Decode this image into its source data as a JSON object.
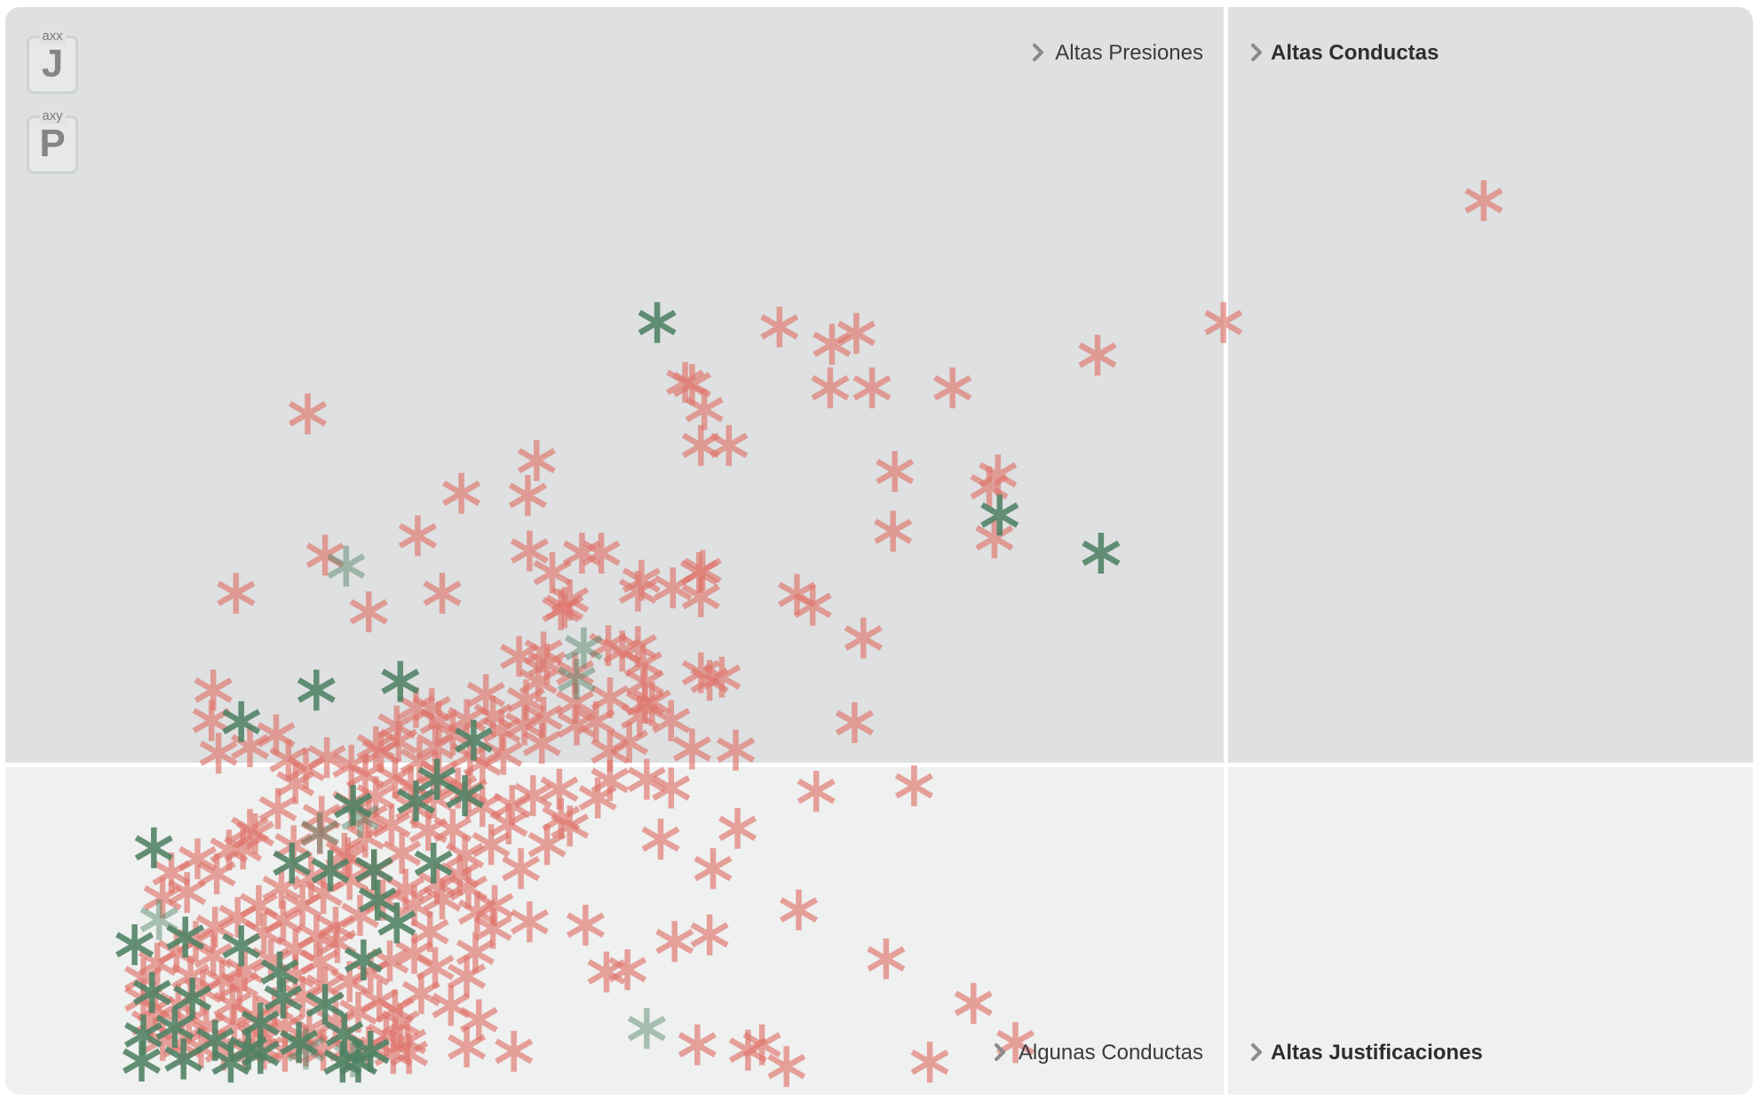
{
  "quadrants": {
    "top_left": "Altas Presiones",
    "top_right": "Altas Conductas",
    "bottom_left": "Algunas Conductas",
    "bottom_right": "Altas Justificaciones"
  },
  "axis_buttons": [
    {
      "small": "axx",
      "big": "J"
    },
    {
      "small": "axy",
      "big": "P"
    }
  ],
  "colors": {
    "red": "#e0766d",
    "green": "#4f8264",
    "top_bg": "#dee0e1",
    "bottom_bg": "#eff0f0",
    "divider": "#ffffff"
  },
  "chart_data": {
    "type": "scatter",
    "marker": "asterisk",
    "xlim": [
      0,
      100
    ],
    "ylim": [
      0,
      100
    ],
    "threshold_x": 68.9,
    "threshold_y": 30.9,
    "grid": false,
    "series": [
      {
        "color_key": "red",
        "points": [
          [
            84.6,
            82.2
          ],
          [
            69.7,
            71.0
          ],
          [
            62.5,
            68.0
          ],
          [
            48.7,
            70.0
          ],
          [
            44.3,
            70.6
          ],
          [
            47.3,
            69.0
          ],
          [
            39.3,
            65.3
          ],
          [
            47.2,
            65.0
          ],
          [
            49.6,
            65.0
          ],
          [
            54.2,
            65.0
          ],
          [
            38.9,
            65.5
          ],
          [
            40.0,
            63.0
          ],
          [
            17.3,
            62.6
          ],
          [
            39.8,
            59.7
          ],
          [
            41.4,
            59.7
          ],
          [
            50.9,
            57.3
          ],
          [
            56.8,
            57.0
          ],
          [
            50.8,
            51.8
          ],
          [
            56.3,
            55.9
          ],
          [
            56.6,
            51.2
          ],
          [
            30.4,
            58.3
          ],
          [
            29.9,
            55.1
          ],
          [
            26.1,
            55.3
          ],
          [
            23.6,
            51.4
          ],
          [
            18.3,
            49.6
          ],
          [
            13.2,
            46.1
          ],
          [
            20.8,
            44.4
          ],
          [
            25.0,
            46.1
          ],
          [
            33.0,
            49.8
          ],
          [
            30.0,
            50.0
          ],
          [
            39.7,
            48.0
          ],
          [
            36.4,
            47.3
          ],
          [
            39.9,
            48.2
          ],
          [
            36.2,
            46.3
          ],
          [
            38.2,
            46.6
          ],
          [
            39.8,
            45.8
          ],
          [
            31.3,
            48.0
          ],
          [
            32.3,
            45.5
          ],
          [
            34.1,
            49.8
          ],
          [
            31.8,
            44.6
          ],
          [
            32.0,
            44.8
          ],
          [
            45.3,
            46.0
          ],
          [
            46.2,
            45.0
          ],
          [
            49.1,
            42.0
          ],
          [
            34.5,
            41.3
          ],
          [
            35.3,
            40.8
          ],
          [
            36.2,
            41.2
          ],
          [
            36.5,
            39.6
          ],
          [
            31.0,
            39.6
          ],
          [
            30.8,
            40.7
          ],
          [
            29.4,
            40.3
          ],
          [
            30.5,
            38.0
          ],
          [
            36.6,
            36.0
          ],
          [
            36.6,
            37.9
          ],
          [
            39.8,
            38.8
          ],
          [
            41.0,
            38.4
          ],
          [
            40.3,
            38.1
          ],
          [
            36.3,
            34.8
          ],
          [
            37.0,
            36.1
          ],
          [
            33.8,
            34.3
          ],
          [
            32.7,
            34.0
          ],
          [
            34.6,
            31.6
          ],
          [
            30.7,
            32.3
          ],
          [
            29.7,
            34.0
          ],
          [
            27.9,
            34.8
          ],
          [
            29.8,
            36.3
          ],
          [
            24.4,
            35.5
          ],
          [
            24.8,
            34.3
          ],
          [
            21.5,
            31.5
          ],
          [
            22.5,
            32.5
          ],
          [
            11.9,
            37.2
          ],
          [
            11.8,
            34.4
          ],
          [
            12.2,
            31.4
          ],
          [
            14.0,
            32.0
          ],
          [
            15.5,
            33.1
          ],
          [
            16.2,
            30.8
          ],
          [
            17.2,
            30.0
          ],
          [
            18.4,
            31.0
          ],
          [
            19.8,
            30.3
          ],
          [
            20.6,
            29.4
          ],
          [
            21.2,
            32.0
          ],
          [
            22.4,
            33.9
          ],
          [
            23.5,
            35.6
          ],
          [
            24.6,
            32.0
          ],
          [
            25.6,
            33.1
          ],
          [
            26.6,
            31.2
          ],
          [
            27.3,
            30.5
          ],
          [
            28.4,
            33.5
          ],
          [
            27.5,
            36.8
          ],
          [
            26.4,
            34.5
          ],
          [
            23.7,
            30.7
          ],
          [
            22.3,
            29.1
          ],
          [
            21.2,
            27.4
          ],
          [
            19.8,
            26.8
          ],
          [
            18.1,
            25.6
          ],
          [
            16.6,
            28.6
          ],
          [
            15.6,
            26.3
          ],
          [
            14.0,
            24.4
          ],
          [
            12.8,
            22.5
          ],
          [
            11.0,
            21.7
          ],
          [
            9.5,
            20.4
          ],
          [
            9.0,
            18.1
          ],
          [
            10.4,
            18.6
          ],
          [
            12.1,
            20.3
          ],
          [
            13.6,
            22.6
          ],
          [
            14.3,
            24.0
          ],
          [
            16.5,
            22.9
          ],
          [
            18.0,
            24.0
          ],
          [
            19.6,
            21.8
          ],
          [
            20.6,
            23.7
          ],
          [
            22.1,
            24.8
          ],
          [
            23.4,
            26.4
          ],
          [
            24.5,
            27.3
          ],
          [
            25.9,
            28.2
          ],
          [
            26.5,
            27.9
          ],
          [
            27.3,
            26.5
          ],
          [
            24.2,
            24.3
          ],
          [
            22.7,
            22.2
          ],
          [
            21.1,
            20.6
          ],
          [
            19.7,
            19.8
          ],
          [
            18.2,
            18.5
          ],
          [
            17.0,
            17.4
          ],
          [
            15.8,
            19.0
          ],
          [
            14.5,
            17.4
          ],
          [
            13.3,
            16.3
          ],
          [
            12.0,
            15.4
          ],
          [
            10.9,
            14.1
          ],
          [
            9.8,
            13.1
          ],
          [
            8.7,
            12.1
          ],
          [
            7.9,
            10.7
          ],
          [
            7.9,
            8.8
          ],
          [
            8.3,
            6.6
          ],
          [
            9.0,
            5.0
          ],
          [
            10.1,
            4.6
          ],
          [
            11.2,
            4.3
          ],
          [
            12.5,
            4.1
          ],
          [
            13.7,
            4.1
          ],
          [
            14.8,
            4.2
          ],
          [
            16.0,
            4.0
          ],
          [
            17.2,
            4.5
          ],
          [
            18.2,
            4.1
          ],
          [
            19.6,
            4.2
          ],
          [
            20.8,
            4.4
          ],
          [
            22.2,
            3.8
          ],
          [
            23.1,
            3.8
          ],
          [
            8.6,
            7.9
          ],
          [
            9.9,
            8.3
          ],
          [
            11.3,
            9.6
          ],
          [
            12.4,
            10.5
          ],
          [
            13.7,
            11.4
          ],
          [
            15.2,
            12.4
          ],
          [
            16.6,
            13.4
          ],
          [
            17.8,
            14.6
          ],
          [
            18.9,
            15.4
          ],
          [
            20.3,
            16.5
          ],
          [
            21.6,
            17.9
          ],
          [
            22.9,
            18.9
          ],
          [
            23.4,
            17.4
          ],
          [
            24.7,
            19.4
          ],
          [
            26.0,
            20.2
          ],
          [
            26.3,
            22.0
          ],
          [
            27.8,
            23.0
          ],
          [
            25.6,
            24.4
          ],
          [
            29.0,
            26.6
          ],
          [
            30.2,
            27.5
          ],
          [
            31.7,
            28.1
          ],
          [
            27.0,
            16.8
          ],
          [
            24.3,
            15.0
          ],
          [
            23.4,
            13.0
          ],
          [
            22.0,
            12.3
          ],
          [
            20.9,
            11.2
          ],
          [
            19.7,
            10.4
          ],
          [
            18.3,
            9.9
          ],
          [
            17.0,
            9.0
          ],
          [
            15.4,
            8.0
          ],
          [
            14.3,
            7.2
          ],
          [
            13.1,
            6.5
          ],
          [
            11.5,
            6.3
          ],
          [
            10.5,
            6.8
          ],
          [
            21.4,
            8.6
          ],
          [
            20.2,
            7.6
          ],
          [
            18.9,
            6.7
          ],
          [
            17.4,
            6.0
          ],
          [
            16.0,
            6.3
          ],
          [
            14.6,
            5.6
          ],
          [
            13.4,
            10.1
          ],
          [
            14.8,
            14.9
          ],
          [
            15.9,
            16.0
          ],
          [
            17.5,
            20.0
          ],
          [
            19.4,
            22.2
          ],
          [
            20.8,
            25.5
          ],
          [
            23.2,
            28.4
          ],
          [
            24.8,
            29.6
          ],
          [
            28.8,
            24.9
          ],
          [
            31.8,
            25.4
          ],
          [
            33.9,
            27.3
          ],
          [
            34.6,
            28.9
          ],
          [
            32.3,
            24.7
          ],
          [
            31.0,
            23.0
          ],
          [
            26.5,
            19.0
          ],
          [
            25.0,
            18.0
          ],
          [
            27.9,
            15.3
          ],
          [
            26.9,
            13.1
          ],
          [
            26.4,
            10.9
          ],
          [
            24.6,
            11.7
          ],
          [
            23.8,
            9.3
          ],
          [
            22.6,
            6.6
          ],
          [
            21.8,
            5.4
          ],
          [
            19.0,
            14.0
          ],
          [
            18.0,
            12.2
          ],
          [
            16.6,
            11.0
          ],
          [
            11.9,
            12.8
          ],
          [
            10.6,
            10.9
          ],
          [
            13.0,
            8.3
          ],
          [
            29.5,
            20.8
          ],
          [
            28.0,
            17.4
          ],
          [
            30.0,
            15.9
          ],
          [
            27.1,
            6.9
          ],
          [
            25.5,
            8.2
          ],
          [
            22.3,
            7.8
          ],
          [
            23.0,
            4.9
          ],
          [
            26.4,
            4.4
          ],
          [
            29.1,
            4.0
          ],
          [
            34.4,
            11.3
          ],
          [
            37.5,
            23.5
          ],
          [
            41.9,
            24.5
          ],
          [
            40.5,
            20.8
          ],
          [
            45.4,
            17.0
          ],
          [
            40.3,
            14.7
          ],
          [
            38.3,
            14.1
          ],
          [
            33.2,
            15.6
          ],
          [
            35.6,
            11.5
          ],
          [
            39.6,
            4.6
          ],
          [
            42.5,
            4.1
          ],
          [
            43.3,
            4.6
          ],
          [
            44.7,
            2.6
          ],
          [
            52.9,
            3.0
          ],
          [
            57.8,
            4.8
          ],
          [
            50.4,
            12.5
          ],
          [
            55.4,
            8.4
          ],
          [
            52.0,
            28.4
          ],
          [
            48.6,
            34.2
          ],
          [
            41.8,
            31.7
          ],
          [
            46.4,
            27.9
          ],
          [
            39.3,
            31.8
          ],
          [
            38.1,
            28.2
          ],
          [
            36.7,
            29.0
          ],
          [
            35.7,
            32.4
          ],
          [
            34.6,
            36.5
          ],
          [
            32.6,
            36.0
          ],
          [
            32.6,
            38.8
          ],
          [
            30.8,
            34.7
          ],
          [
            28.5,
            31.3
          ],
          [
            38.1,
            34.4
          ]
        ]
      },
      {
        "color_key": "green",
        "points": [
          [
            22.6,
            38.0
          ],
          [
            37.3,
            71.0
          ],
          [
            56.9,
            53.3
          ],
          [
            62.7,
            49.8
          ],
          [
            13.5,
            34.3
          ],
          [
            17.8,
            37.2
          ],
          [
            24.7,
            29.0
          ],
          [
            26.8,
            32.6
          ],
          [
            23.5,
            27.0
          ],
          [
            8.5,
            22.7
          ],
          [
            10.3,
            14.5
          ],
          [
            16.4,
            21.3
          ],
          [
            18.6,
            20.6
          ],
          [
            21.3,
            17.9
          ],
          [
            7.4,
            13.8
          ],
          [
            8.4,
            9.4
          ],
          [
            9.7,
            6.2
          ],
          [
            12.0,
            5.0
          ],
          [
            14.6,
            3.8
          ],
          [
            16.8,
            4.8
          ],
          [
            19.4,
            5.6
          ],
          [
            7.9,
            5.5
          ],
          [
            10.7,
            8.9
          ],
          [
            13.5,
            13.7
          ],
          [
            15.7,
            11.3
          ],
          [
            20.5,
            12.4
          ],
          [
            22.4,
            15.8
          ],
          [
            18.3,
            8.3
          ],
          [
            14.6,
            6.6
          ],
          [
            7.8,
            3.1
          ],
          [
            10.2,
            3.3
          ],
          [
            12.9,
            3.0
          ],
          [
            19.9,
            26.6
          ],
          [
            21.1,
            20.7
          ],
          [
            24.5,
            21.3
          ],
          [
            13.9,
            4.2
          ],
          [
            26.3,
            27.5
          ],
          [
            19.3,
            3.0
          ],
          [
            15.9,
            8.9
          ],
          [
            20.9,
            4.0
          ],
          [
            20.2,
            3.0
          ]
        ]
      },
      {
        "color_key": "green",
        "opacity": "faded",
        "points": [
          [
            8.8,
            16.1
          ],
          [
            33.1,
            41.1
          ],
          [
            19.5,
            48.6
          ],
          [
            32.7,
            38.2
          ],
          [
            36.7,
            6.1
          ],
          [
            19.9,
            3.5
          ],
          [
            17.2,
            4.2
          ],
          [
            18.0,
            24.1
          ],
          [
            20.3,
            25.5
          ]
        ]
      }
    ]
  }
}
